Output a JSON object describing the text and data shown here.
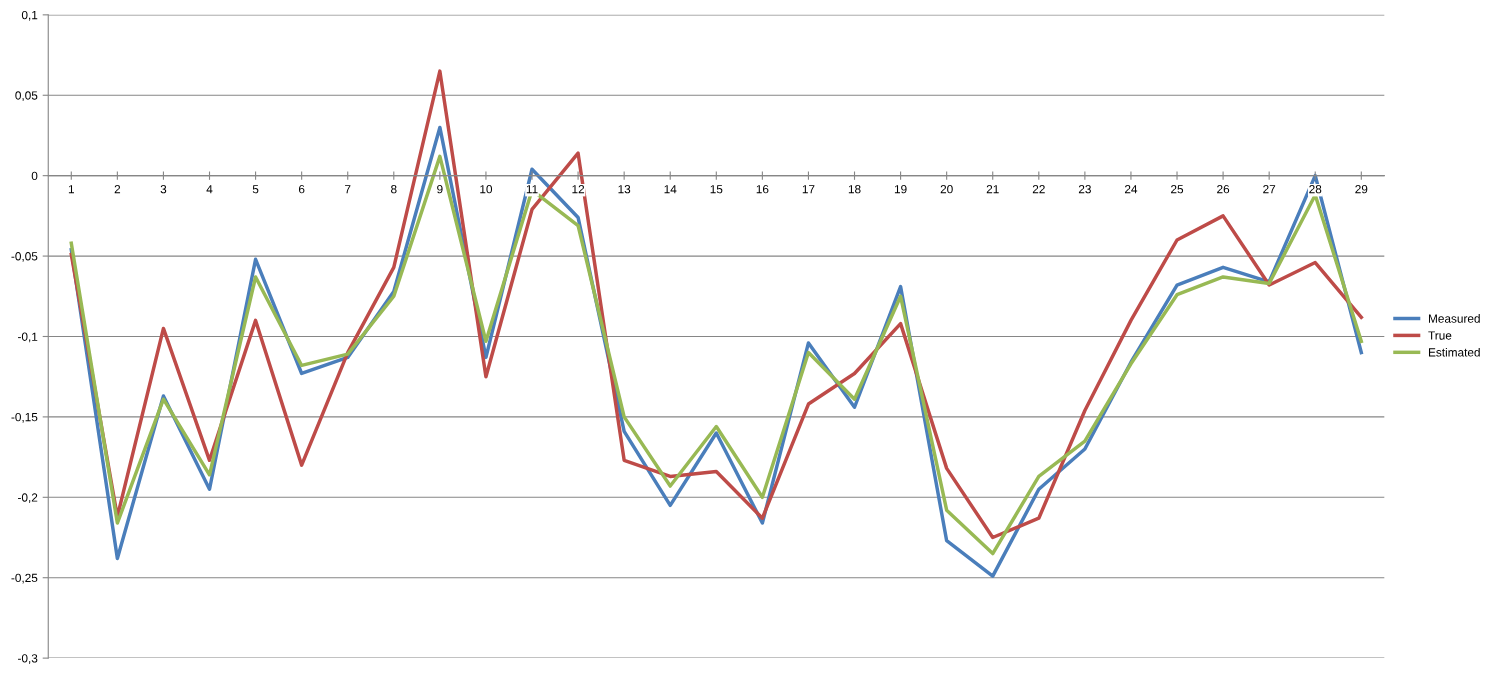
{
  "chart_data": {
    "type": "line",
    "categories": [
      "1",
      "2",
      "3",
      "4",
      "5",
      "6",
      "7",
      "8",
      "9",
      "10",
      "11",
      "12",
      "13",
      "14",
      "15",
      "16",
      "17",
      "18",
      "19",
      "20",
      "21",
      "22",
      "23",
      "24",
      "25",
      "26",
      "27",
      "28",
      "29"
    ],
    "series": [
      {
        "name": "Measured",
        "color": "#4a7ebb",
        "values": [
          -0.046,
          -0.238,
          -0.137,
          -0.195,
          -0.052,
          -0.123,
          -0.113,
          -0.072,
          0.03,
          -0.113,
          0.004,
          -0.026,
          -0.159,
          -0.205,
          -0.16,
          -0.216,
          -0.104,
          -0.144,
          -0.069,
          -0.227,
          -0.249,
          -0.195,
          -0.17,
          -0.116,
          -0.068,
          -0.057,
          -0.066,
          0.0,
          -0.11
        ]
      },
      {
        "name": "True",
        "color": "#be4b48",
        "values": [
          -0.049,
          -0.212,
          -0.095,
          -0.177,
          -0.09,
          -0.18,
          -0.11,
          -0.057,
          0.065,
          -0.125,
          -0.021,
          0.014,
          -0.177,
          -0.187,
          -0.184,
          -0.213,
          -0.142,
          -0.123,
          -0.092,
          -0.182,
          -0.225,
          -0.213,
          -0.146,
          -0.09,
          -0.04,
          -0.025,
          -0.068,
          -0.054,
          -0.088
        ]
      },
      {
        "name": "Estimated",
        "color": "#98b954",
        "values": [
          -0.042,
          -0.216,
          -0.139,
          -0.186,
          -0.063,
          -0.118,
          -0.111,
          -0.075,
          0.012,
          -0.103,
          -0.009,
          -0.031,
          -0.15,
          -0.193,
          -0.156,
          -0.2,
          -0.11,
          -0.139,
          -0.075,
          -0.208,
          -0.235,
          -0.187,
          -0.165,
          -0.117,
          -0.074,
          -0.063,
          -0.067,
          -0.012,
          -0.103
        ]
      }
    ],
    "ylim": [
      -0.3,
      0.1
    ],
    "yticks": [
      {
        "value": -0.3,
        "label": "-0,3"
      },
      {
        "value": -0.25,
        "label": "-0,25"
      },
      {
        "value": -0.2,
        "label": "-0,2"
      },
      {
        "value": -0.15,
        "label": "-0,15"
      },
      {
        "value": -0.1,
        "label": "-0,1"
      },
      {
        "value": -0.05,
        "label": "-0,05"
      },
      {
        "value": 0,
        "label": "0"
      },
      {
        "value": 0.05,
        "label": "0,05"
      },
      {
        "value": 0.1,
        "label": "0,1"
      }
    ],
    "grid": "y",
    "legend": "right",
    "marker": "none",
    "line_style": "solid"
  }
}
